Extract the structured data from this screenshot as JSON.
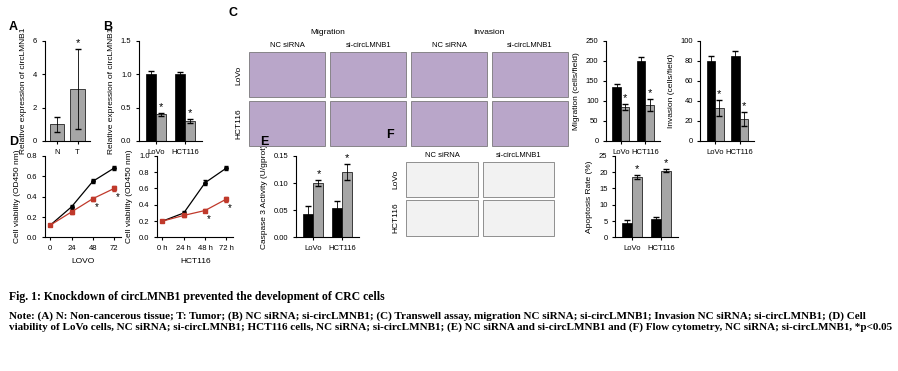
{
  "chart_data": [
    {
      "panel": "A",
      "type": "bar",
      "categories": [
        "N",
        "T"
      ],
      "y_label": "Relative expression of circLMNB1",
      "ylim": [
        0,
        6
      ],
      "yticks": [
        0,
        2,
        4,
        6
      ],
      "series": [
        {
          "color": "#a6a6a6",
          "values": [
            1.0,
            3.1
          ],
          "errors": [
            0.45,
            2.4
          ],
          "annotations": [
            null,
            "*"
          ]
        }
      ]
    },
    {
      "panel": "B",
      "type": "bar",
      "categories": [
        "LoVo",
        "HCT116"
      ],
      "y_label": "Relative expression of circLMNB1",
      "ylim": [
        0,
        1.5
      ],
      "yticks": [
        {
          "value": 0,
          "label": "0.0"
        },
        0.5,
        1.0,
        1.5
      ],
      "series": [
        {
          "color": "#000000",
          "values": [
            1.0,
            1.0
          ],
          "errors": [
            0.05,
            0.03
          ],
          "annotations": [
            null,
            null
          ]
        },
        {
          "color": "#a6a6a6",
          "values": [
            0.4,
            0.3
          ],
          "errors": [
            0.02,
            0.03
          ],
          "annotations": [
            "*",
            "*"
          ]
        }
      ]
    },
    {
      "type": "bar",
      "categories": [
        "LoVo",
        "HCT116"
      ],
      "y_label": "Migration (cells/field)",
      "ylim": [
        0,
        250
      ],
      "yticks": [
        0,
        50,
        100,
        150,
        200,
        250
      ],
      "series": [
        {
          "color": "#000000",
          "values": [
            135,
            200
          ],
          "errors": [
            8,
            10
          ],
          "annotations": [
            null,
            null
          ]
        },
        {
          "color": "#a6a6a6",
          "values": [
            85,
            90
          ],
          "errors": [
            8,
            15
          ],
          "annotations": [
            "*",
            "*"
          ]
        }
      ]
    },
    {
      "type": "bar",
      "categories": [
        "LoVo",
        "HCT116"
      ],
      "y_label": "Invasion (cells/field)",
      "ylim": [
        0,
        100
      ],
      "yticks": [
        0,
        20,
        40,
        60,
        80,
        100
      ],
      "series": [
        {
          "color": "#000000",
          "values": [
            80,
            85
          ],
          "errors": [
            5,
            5
          ],
          "annotations": [
            null,
            null
          ]
        },
        {
          "color": "#a6a6a6",
          "values": [
            33,
            22
          ],
          "errors": [
            8,
            7
          ],
          "annotations": [
            "*",
            "*"
          ]
        }
      ]
    },
    {
      "panel": "D",
      "type": "line",
      "x": [
        0,
        24,
        48,
        72
      ],
      "x_label": "LOVO",
      "y_label": "Cell viability (OD450 nm)",
      "xlim": [
        -6,
        80
      ],
      "xticks": [
        0,
        24,
        48,
        72
      ],
      "ylim": [
        0,
        0.8
      ],
      "yticks": [
        {
          "value": 0,
          "label": "0.0"
        },
        0.2,
        0.4,
        0.6,
        0.8
      ],
      "series": [
        {
          "color": "#000000",
          "marker": "o",
          "values": [
            0.12,
            0.3,
            0.55,
            0.68
          ],
          "errors": [
            0.01,
            0.02,
            0.02,
            0.02
          ],
          "annotations": [
            null,
            null,
            null,
            null
          ]
        },
        {
          "color": "#c0392b",
          "marker": "s",
          "values": [
            0.12,
            0.25,
            0.38,
            0.48
          ],
          "errors": [
            0.01,
            0.02,
            0.02,
            0.02
          ],
          "annotations": [
            null,
            null,
            "*",
            "*"
          ]
        }
      ]
    },
    {
      "type": "line",
      "x": [
        0,
        24,
        48,
        72
      ],
      "x_label": "HCT116",
      "y_label": "Cell viability (OD450 nm)",
      "xlim": [
        -6,
        80
      ],
      "xticks": [
        {
          "value": 0,
          "label": "0 h"
        },
        {
          "value": 24,
          "label": "24 h"
        },
        {
          "value": 48,
          "label": "48 h"
        },
        {
          "value": 72,
          "label": "72 h"
        }
      ],
      "ylim": [
        0,
        1.0
      ],
      "yticks": [
        {
          "value": 0,
          "label": "0.0"
        },
        0.2,
        0.4,
        0.6,
        0.8,
        1.0
      ],
      "series": [
        {
          "color": "#000000",
          "marker": "o",
          "values": [
            0.2,
            0.3,
            0.67,
            0.85
          ],
          "errors": [
            0.01,
            0.02,
            0.03,
            0.02
          ],
          "annotations": [
            null,
            null,
            null,
            null
          ]
        },
        {
          "color": "#c0392b",
          "marker": "s",
          "values": [
            0.2,
            0.27,
            0.33,
            0.47
          ],
          "errors": [
            0.01,
            0.02,
            0.02,
            0.03
          ],
          "annotations": [
            null,
            null,
            "*",
            "*"
          ]
        }
      ]
    },
    {
      "panel": "E",
      "type": "bar",
      "categories": [
        "LoVo",
        "HCT116"
      ],
      "y_label": "Caspase 3 Activity (U/gprot)",
      "ylim": [
        0,
        0.15
      ],
      "yticks": [
        {
          "value": 0,
          "label": "0.00"
        },
        {
          "value": 0.05,
          "label": "0.05"
        },
        {
          "value": 0.1,
          "label": "0.10"
        },
        {
          "value": 0.15,
          "label": "0.15"
        }
      ],
      "series": [
        {
          "color": "#000000",
          "values": [
            0.043,
            0.055
          ],
          "errors": [
            0.015,
            0.012
          ],
          "annotations": [
            null,
            null
          ]
        },
        {
          "color": "#a6a6a6",
          "values": [
            0.1,
            0.12
          ],
          "errors": [
            0.005,
            0.015
          ],
          "annotations": [
            "*",
            "*"
          ]
        }
      ]
    },
    {
      "type": "bar",
      "categories": [
        "LoVo",
        "HCT116"
      ],
      "y_label": "Apoptosis Rate (%)",
      "ylim": [
        0,
        25
      ],
      "yticks": [
        0,
        5,
        10,
        15,
        20,
        25
      ],
      "series": [
        {
          "color": "#000000",
          "values": [
            4.5,
            5.5
          ],
          "errors": [
            0.8,
            0.7
          ],
          "annotations": [
            null,
            null
          ]
        },
        {
          "color": "#a6a6a6",
          "values": [
            18.5,
            20.5
          ],
          "errors": [
            0.6,
            0.5
          ],
          "annotations": [
            "*",
            "*"
          ]
        }
      ]
    }
  ],
  "images": [
    {
      "panel": "C",
      "groups": [
        {
          "title": "Migration",
          "columns": [
            "NC siRNA",
            "si-circLMNB1"
          ]
        },
        {
          "title": "Invasion",
          "columns": [
            "NC siRNA",
            "si-circLMNB1"
          ]
        }
      ],
      "rows": [
        "LoVo",
        "HCT116"
      ],
      "color": "#b9a6c9"
    },
    {
      "panel": "F",
      "groups": [
        {
          "title": "",
          "columns": [
            "NC siRNA",
            "si-circLMNB1"
          ]
        }
      ],
      "rows": [
        "LoVo",
        "HCT116"
      ],
      "color": "#f2f2f2"
    }
  ],
  "caption": {
    "title": "Fig. 1: Knockdown of circLMNB1 prevented the development of CRC cells",
    "note": "Note: (A) N: Non-cancerous tissue; T: Tumor; (B) NC siRNA; si-circLMNB1; (C) Transwell assay, migration NC siRNA; si-circLMNB1; Invasion NC siRNA; si-circLMNB1; (D) Cell viability of LoVo cells, NC siRNA; si-circLMNB1; HCT116 cells, NC siRNA; si-circLMNB1; (E) NC siRNA and si-circLMNB1 and (F) Flow cytometry, NC siRNA; si-circLMNB1, *p<0.05"
  }
}
